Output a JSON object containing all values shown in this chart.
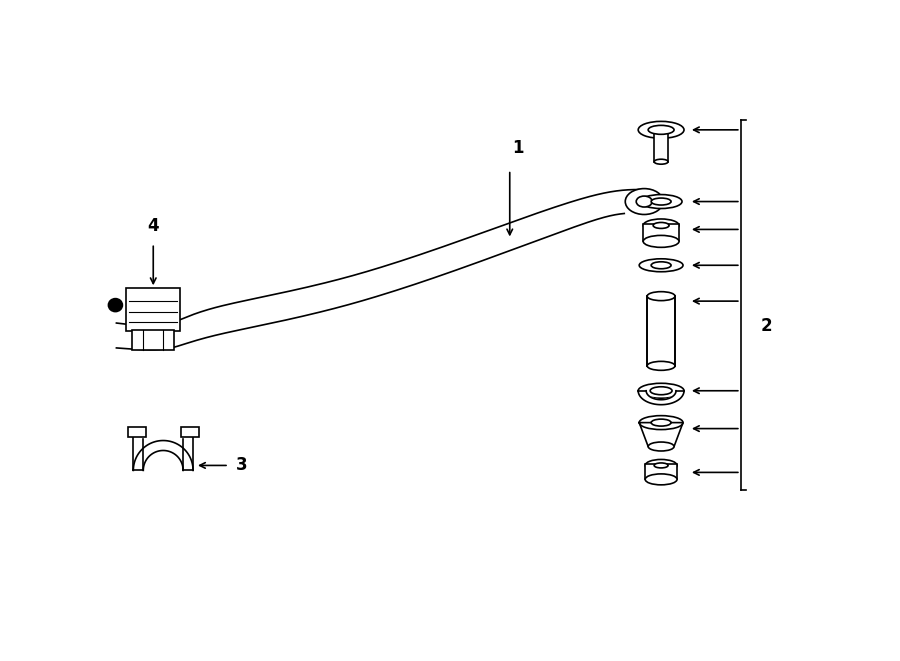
{
  "bg_color": "#ffffff",
  "line_color": "#000000",
  "figure_width": 9.0,
  "figure_height": 6.61,
  "dpi": 100,
  "label_1": "1",
  "label_2": "2",
  "label_3": "3",
  "label_4": "4"
}
